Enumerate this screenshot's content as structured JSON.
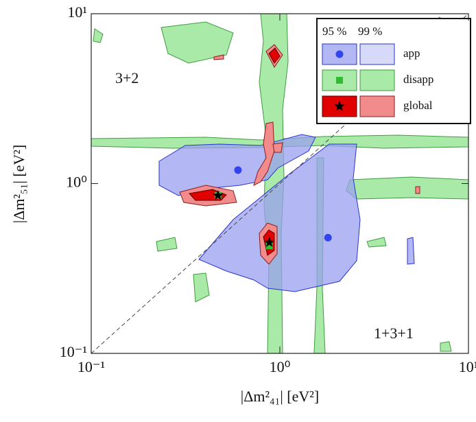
{
  "chart_data": {
    "type": "scatter",
    "xlabel": "|Δm²₄₁| [eV²]",
    "ylabel": "|Δm²₅₁| [eV²]",
    "xlim": [
      0.1,
      10
    ],
    "ylim": [
      0.1,
      10
    ],
    "log_x": true,
    "log_y": true,
    "xticks": [
      {
        "value": 0.1,
        "label": "10⁻¹"
      },
      {
        "value": 1,
        "label": "10⁰"
      },
      {
        "value": 10,
        "label": "10¹"
      }
    ],
    "yticks": [
      {
        "value": 0.1,
        "label": "10⁻¹"
      },
      {
        "value": 1,
        "label": "10⁰"
      },
      {
        "value": 10,
        "label": "10¹"
      }
    ],
    "annotations": [
      "3+2",
      "1+3+1"
    ],
    "legend_columns": [
      "95 %",
      "99 %"
    ],
    "series": [
      {
        "name": "app",
        "color": "#3344ee",
        "marker": "circle",
        "x": [
          0.6,
          1.8
        ],
        "values": [
          1.2,
          0.48
        ]
      },
      {
        "name": "disapp",
        "color": "#33bb33",
        "marker": "square",
        "x": [
          0.47,
          0.88
        ],
        "values": [
          0.85,
          0.43
        ]
      },
      {
        "name": "global",
        "color": "#000000",
        "marker": "star",
        "x": [
          0.47,
          0.88
        ],
        "values": [
          0.85,
          0.45
        ]
      }
    ]
  }
}
